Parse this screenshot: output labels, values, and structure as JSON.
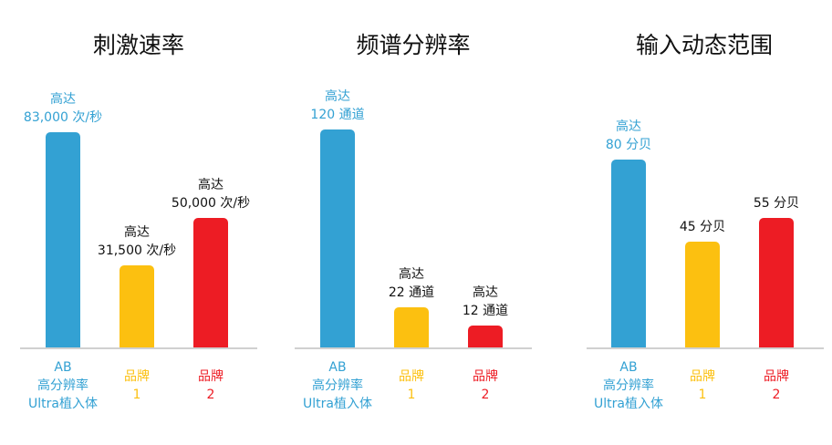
{
  "colors": {
    "ab": "#33a1d3",
    "brand1": "#fcc010",
    "brand2": "#ed1c24",
    "value_text": "#111111"
  },
  "chart_data": [
    {
      "type": "bar",
      "title": "刺激速率",
      "categories": [
        "AB\n高分辨率\nUltra植入体",
        "品牌\n1",
        "品牌\n2"
      ],
      "values": [
        83000,
        31500,
        50000
      ],
      "value_labels": [
        "高达\n83,000 次/秒",
        "高达\n31,500 次/秒",
        "高达\n50,000 次/秒"
      ],
      "unit": "次/秒",
      "ylim": [
        0,
        84400
      ]
    },
    {
      "type": "bar",
      "title": "频谱分辨率",
      "categories": [
        "AB\n高分辨率\nUltra植入体",
        "品牌\n1",
        "品牌\n2"
      ],
      "values": [
        120,
        22,
        12
      ],
      "value_labels": [
        "高达\n120 通道",
        "高达\n22 通道",
        "高达\n12 通道"
      ],
      "unit": "通道",
      "ylim": [
        0,
        120.5
      ]
    },
    {
      "type": "bar",
      "title": "输入动态范围",
      "categories": [
        "AB\n高分辨率\nUltra植入体",
        "品牌\n1",
        "品牌\n2"
      ],
      "values": [
        80,
        45,
        55
      ],
      "value_labels": [
        "高达\n80 分贝",
        "45 分贝",
        "55 分贝"
      ],
      "unit": "分贝",
      "ylim": [
        0,
        93.2
      ]
    }
  ]
}
